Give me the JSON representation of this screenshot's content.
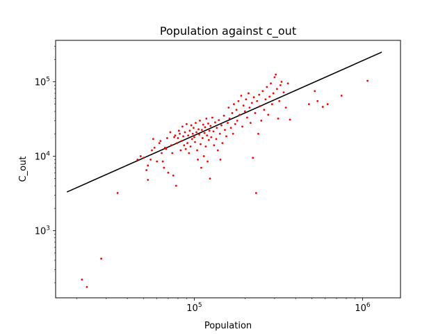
{
  "chart_data": {
    "type": "scatter",
    "title": "Population against c_out",
    "xlabel": "Population",
    "ylabel": "C_out",
    "xscale": "log",
    "yscale": "log",
    "xlim": [
      15000,
      1680000
    ],
    "ylim": [
      125,
      360000
    ],
    "x_ticks": [
      {
        "value": 100000,
        "base": "10",
        "exp": "5"
      },
      {
        "value": 1000000,
        "base": "10",
        "exp": "6"
      }
    ],
    "y_ticks": [
      {
        "value": 1000,
        "base": "10",
        "exp": "3"
      },
      {
        "value": 10000,
        "base": "10",
        "exp": "4"
      },
      {
        "value": 100000,
        "base": "10",
        "exp": "5"
      }
    ],
    "grid": false,
    "colors": {
      "points": "#ff0000",
      "fit_line": "#000000",
      "axes": "#000000"
    },
    "fit_line": {
      "x": [
        17500,
        1300000
      ],
      "y": [
        3300,
        250000
      ]
    },
    "series": [
      {
        "points": [
          [
            21500,
            220
          ],
          [
            23000,
            175
          ],
          [
            28000,
            420
          ],
          [
            35000,
            3200
          ],
          [
            46000,
            9000
          ],
          [
            48000,
            10000
          ],
          [
            50000,
            9500
          ],
          [
            52000,
            6500
          ],
          [
            53000,
            7500
          ],
          [
            53000,
            4800
          ],
          [
            55000,
            9000
          ],
          [
            56000,
            12000
          ],
          [
            57000,
            17000
          ],
          [
            58000,
            13000
          ],
          [
            60000,
            8500
          ],
          [
            62000,
            15000
          ],
          [
            63000,
            16000
          ],
          [
            64000,
            11000
          ],
          [
            65000,
            8500
          ],
          [
            66000,
            7000
          ],
          [
            67000,
            13000
          ],
          [
            68000,
            12500
          ],
          [
            69000,
            17500
          ],
          [
            70000,
            6000
          ],
          [
            72000,
            21000
          ],
          [
            73000,
            14000
          ],
          [
            74000,
            11000
          ],
          [
            75000,
            5500
          ],
          [
            76000,
            18000
          ],
          [
            77000,
            19000
          ],
          [
            78000,
            4000
          ],
          [
            79000,
            15000
          ],
          [
            80000,
            17500
          ],
          [
            81000,
            22000
          ],
          [
            82000,
            20000
          ],
          [
            83000,
            12000
          ],
          [
            84000,
            16000
          ],
          [
            85000,
            25000
          ],
          [
            86000,
            18500
          ],
          [
            87000,
            14000
          ],
          [
            88000,
            21000
          ],
          [
            89000,
            12500
          ],
          [
            90000,
            27000
          ],
          [
            91000,
            15000
          ],
          [
            92000,
            19000
          ],
          [
            93000,
            11000
          ],
          [
            94000,
            22000
          ],
          [
            95000,
            13500
          ],
          [
            96000,
            26000
          ],
          [
            97000,
            17000
          ],
          [
            98000,
            20000
          ],
          [
            99000,
            24000
          ],
          [
            100000,
            18000
          ],
          [
            101000,
            15500
          ],
          [
            102000,
            28000
          ],
          [
            103000,
            21000
          ],
          [
            104000,
            12000
          ],
          [
            105000,
            9000
          ],
          [
            106000,
            23000
          ],
          [
            107000,
            19500
          ],
          [
            108000,
            30000
          ],
          [
            109000,
            14500
          ],
          [
            110000,
            7000
          ],
          [
            111000,
            22500
          ],
          [
            112000,
            17500
          ],
          [
            113000,
            26500
          ],
          [
            114000,
            10000
          ],
          [
            115000,
            20500
          ],
          [
            116000,
            24500
          ],
          [
            117000,
            13500
          ],
          [
            118000,
            32000
          ],
          [
            119000,
            19000
          ],
          [
            120000,
            8500
          ],
          [
            121000,
            27500
          ],
          [
            122000,
            16500
          ],
          [
            123000,
            22000
          ],
          [
            124000,
            5000
          ],
          [
            125000,
            25500
          ],
          [
            126000,
            18000
          ],
          [
            128000,
            33000
          ],
          [
            130000,
            21500
          ],
          [
            131000,
            14000
          ],
          [
            133000,
            28500
          ],
          [
            135000,
            17000
          ],
          [
            136000,
            24000
          ],
          [
            138000,
            12000
          ],
          [
            140000,
            30500
          ],
          [
            142000,
            20000
          ],
          [
            143000,
            9000
          ],
          [
            145000,
            26000
          ],
          [
            147000,
            15000
          ],
          [
            150000,
            35000
          ],
          [
            152000,
            22500
          ],
          [
            155000,
            18500
          ],
          [
            158000,
            28000
          ],
          [
            160000,
            45000
          ],
          [
            162000,
            32000
          ],
          [
            165000,
            24000
          ],
          [
            168000,
            38000
          ],
          [
            170000,
            20000
          ],
          [
            172000,
            50000
          ],
          [
            175000,
            27000
          ],
          [
            178000,
            42000
          ],
          [
            180000,
            30000
          ],
          [
            183000,
            55000
          ],
          [
            186000,
            36000
          ],
          [
            190000,
            65000
          ],
          [
            193000,
            25000
          ],
          [
            196000,
            48000
          ],
          [
            200000,
            40000
          ],
          [
            203000,
            58000
          ],
          [
            206000,
            33000
          ],
          [
            210000,
            70000
          ],
          [
            213000,
            45000
          ],
          [
            216000,
            28000
          ],
          [
            220000,
            52000
          ],
          [
            223000,
            9500
          ],
          [
            226000,
            62000
          ],
          [
            230000,
            38000
          ],
          [
            233000,
            3200
          ],
          [
            236000,
            55000
          ],
          [
            240000,
            20000
          ],
          [
            243000,
            67000
          ],
          [
            246000,
            47000
          ],
          [
            250000,
            30000
          ],
          [
            255000,
            75000
          ],
          [
            260000,
            42000
          ],
          [
            265000,
            58000
          ],
          [
            270000,
            85000
          ],
          [
            275000,
            36000
          ],
          [
            280000,
            63000
          ],
          [
            285000,
            95000
          ],
          [
            290000,
            50000
          ],
          [
            295000,
            70000
          ],
          [
            300000,
            115000
          ],
          [
            305000,
            125000
          ],
          [
            310000,
            80000
          ],
          [
            315000,
            32000
          ],
          [
            320000,
            55000
          ],
          [
            325000,
            90000
          ],
          [
            330000,
            100000
          ],
          [
            340000,
            72000
          ],
          [
            350000,
            45000
          ],
          [
            360000,
            95000
          ],
          [
            370000,
            31000
          ],
          [
            480000,
            50000
          ],
          [
            520000,
            75000
          ],
          [
            540000,
            55000
          ],
          [
            580000,
            46000
          ],
          [
            620000,
            50000
          ],
          [
            750000,
            65000
          ],
          [
            1070000,
            103000
          ]
        ]
      }
    ]
  }
}
